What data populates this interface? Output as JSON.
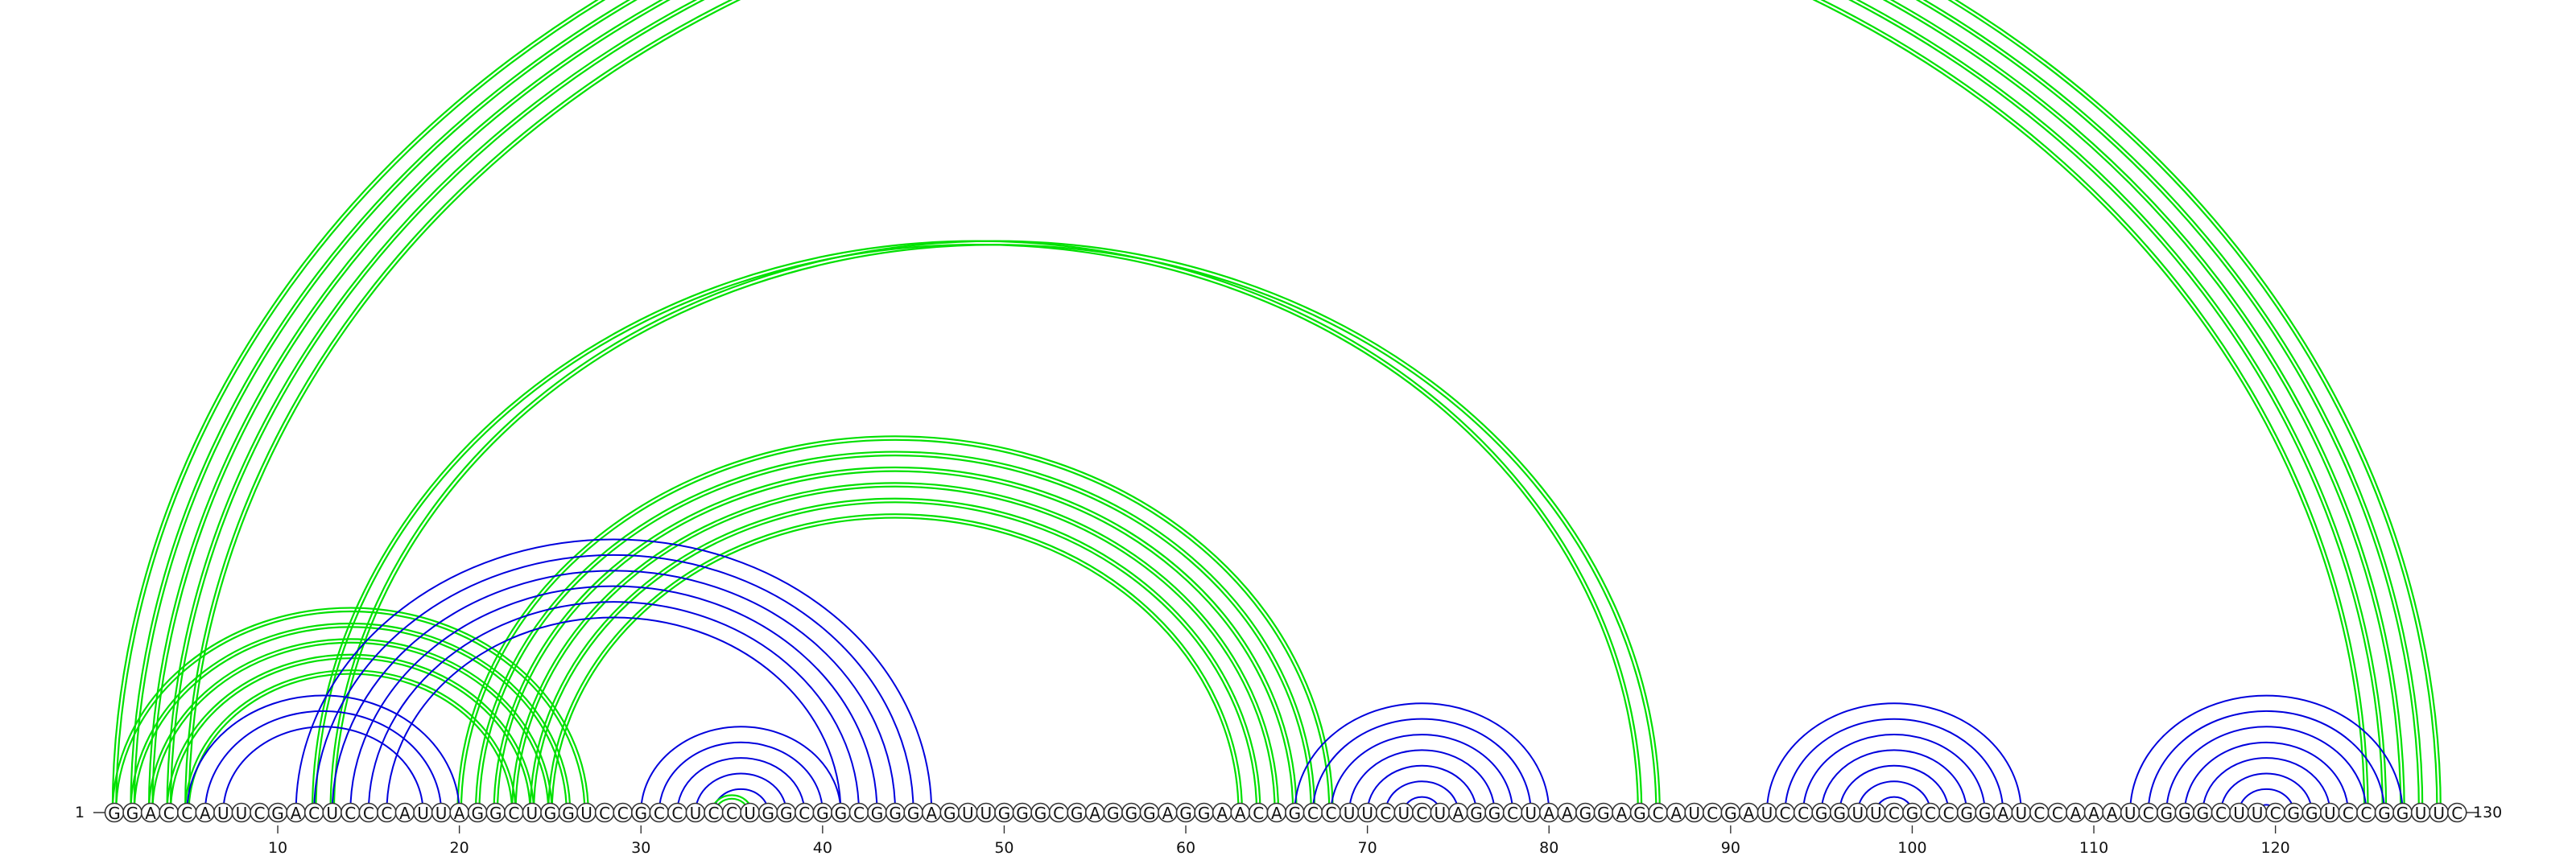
{
  "sequence": "GGACCAUUCGACUCCCAUUAGGCUGGUCCGCCUCCUGGCGGCGGGAGUUGGGCGAGGGAGGAACAGCCUUCUCUAGGCUAAGGAGCAUCGAUCCGGUUCGCCGGAUCCAAAUCGGGCUUCGGUCCGGUUC",
  "start_label": "1",
  "end_label": "130",
  "axis_ticks": [
    10,
    20,
    30,
    40,
    50,
    60,
    70,
    80,
    90,
    100,
    110,
    120
  ],
  "colors": {
    "green": "#00e000",
    "blue": "#0000dd",
    "text": "#111111",
    "outline": "#333333"
  },
  "arc_groups": [
    {
      "color": "green",
      "lines": 2,
      "pairs": [
        [
          1,
          129
        ],
        [
          2,
          128
        ],
        [
          3,
          127
        ],
        [
          4,
          126
        ],
        [
          5,
          125
        ]
      ]
    },
    {
      "color": "green",
      "lines": 2,
      "pairs": [
        [
          1,
          27
        ],
        [
          2,
          26
        ],
        [
          3,
          25
        ],
        [
          4,
          24
        ],
        [
          5,
          23
        ]
      ]
    },
    {
      "color": "green",
      "lines": 2,
      "pairs": [
        [
          12,
          85
        ],
        [
          13,
          86
        ]
      ]
    },
    {
      "color": "green",
      "lines": 2,
      "pairs": [
        [
          20,
          68
        ],
        [
          21,
          67
        ],
        [
          22,
          66
        ],
        [
          23,
          65
        ],
        [
          24,
          64
        ],
        [
          25,
          63
        ]
      ]
    },
    {
      "color": "blue",
      "lines": 1,
      "pairs": [
        [
          11,
          46
        ],
        [
          12,
          45
        ],
        [
          13,
          44
        ],
        [
          14,
          43
        ],
        [
          15,
          42
        ],
        [
          16,
          41
        ]
      ]
    },
    {
      "color": "blue",
      "lines": 1,
      "pairs": [
        [
          5,
          20
        ],
        [
          6,
          19
        ],
        [
          7,
          18
        ]
      ]
    },
    {
      "color": "blue",
      "lines": 1,
      "pairs": [
        [
          30,
          41
        ],
        [
          31,
          40
        ],
        [
          32,
          39
        ],
        [
          33,
          38
        ],
        [
          34,
          37
        ]
      ]
    },
    {
      "color": "green",
      "lines": 2,
      "pairs": [
        [
          34,
          36
        ]
      ]
    },
    {
      "color": "blue",
      "lines": 1,
      "pairs": [
        [
          66,
          80
        ],
        [
          67,
          79
        ],
        [
          68,
          78
        ],
        [
          69,
          77
        ],
        [
          70,
          76
        ],
        [
          71,
          75
        ],
        [
          72,
          74
        ]
      ]
    },
    {
      "color": "blue",
      "lines": 1,
      "pairs": [
        [
          92,
          106
        ],
        [
          93,
          105
        ],
        [
          94,
          104
        ],
        [
          95,
          103
        ],
        [
          96,
          102
        ],
        [
          97,
          101
        ],
        [
          98,
          100
        ]
      ]
    },
    {
      "color": "blue",
      "lines": 1,
      "pairs": [
        [
          112,
          127
        ],
        [
          113,
          126
        ],
        [
          114,
          125
        ],
        [
          115,
          124
        ],
        [
          116,
          123
        ],
        [
          117,
          122
        ],
        [
          118,
          121
        ],
        [
          119,
          120
        ]
      ]
    }
  ]
}
